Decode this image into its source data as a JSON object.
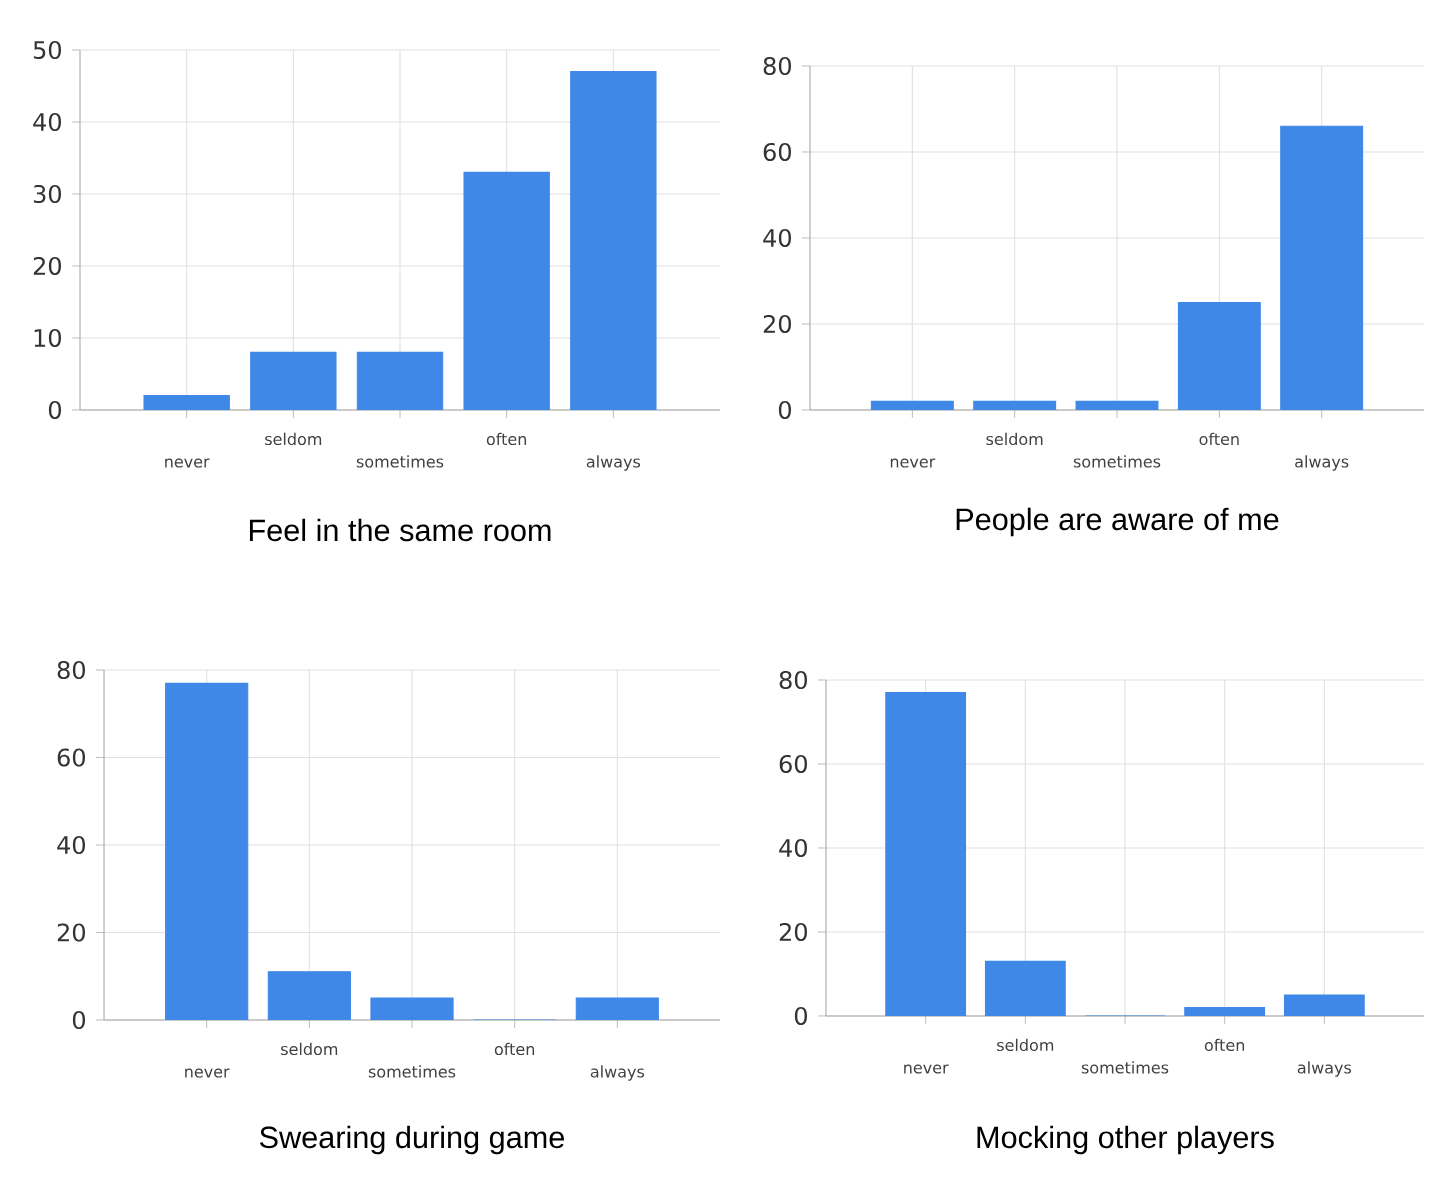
{
  "chart_data": [
    {
      "type": "bar",
      "title": "Feel in the same room",
      "categories": [
        "never",
        "seldom",
        "sometimes",
        "often",
        "always"
      ],
      "values": [
        2,
        8,
        8,
        33,
        47
      ],
      "color": "#3f88e8",
      "ylim": [
        0,
        50
      ],
      "yticks": [
        0,
        10,
        20,
        30,
        40,
        50
      ],
      "grid": true
    },
    {
      "type": "bar",
      "title": "People are aware of me",
      "categories": [
        "never",
        "seldom",
        "sometimes",
        "often",
        "always"
      ],
      "values": [
        2,
        2,
        2,
        25,
        66
      ],
      "color": "#3f88e8",
      "ylim": [
        0,
        80
      ],
      "yticks": [
        0,
        20,
        40,
        60,
        80
      ],
      "grid": true
    },
    {
      "type": "bar",
      "title": "Swearing during game",
      "categories": [
        "never",
        "seldom",
        "sometimes",
        "often",
        "always"
      ],
      "values": [
        77,
        11,
        5,
        0,
        5
      ],
      "color": "#3f88e8",
      "ylim": [
        0,
        80
      ],
      "yticks": [
        0,
        20,
        40,
        60,
        80
      ],
      "grid": true
    },
    {
      "type": "bar",
      "title": "Mocking other players",
      "categories": [
        "never",
        "seldom",
        "sometimes",
        "often",
        "always"
      ],
      "values": [
        77,
        13,
        0,
        2,
        5
      ],
      "color": "#3f88e8",
      "ylim": [
        0,
        80
      ],
      "yticks": [
        0,
        20,
        40,
        60,
        80
      ],
      "grid": true
    }
  ]
}
